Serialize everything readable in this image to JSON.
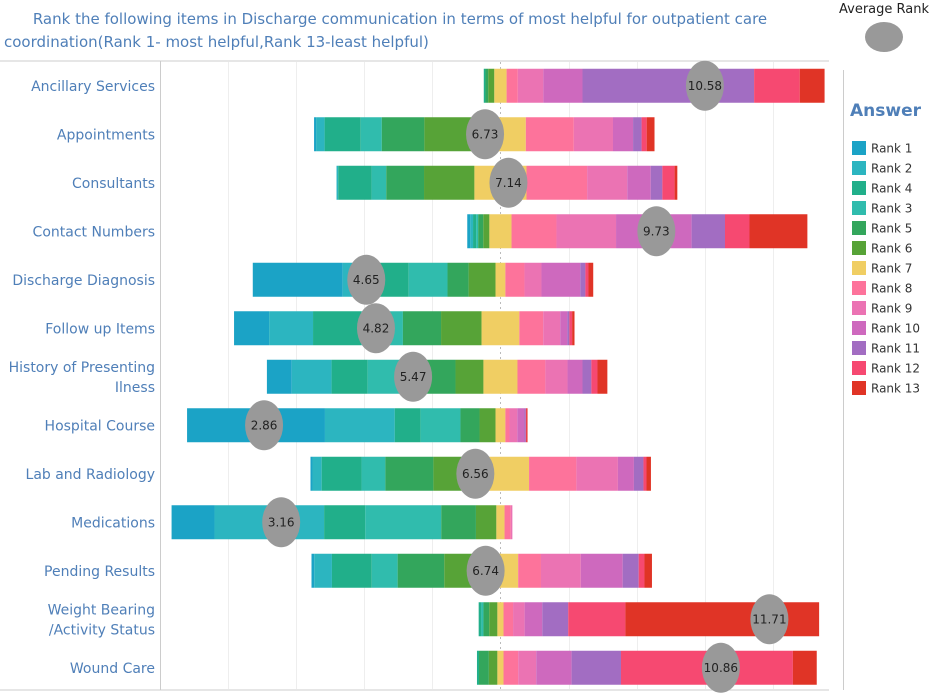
{
  "chart_data": {
    "type": "bar",
    "subtype": "diverging-stacked-bar-with-average-dots",
    "title_line1": "Rank the following items in Discharge communication in terms of most helpful for outpatient care",
    "title_line2": "coordination(Rank 1- most  helpful,Rank 13-least helpful)",
    "unit": "percent of responses",
    "xlim": [
      -100,
      96.5
    ],
    "grid": true,
    "center_reference": "middle of Rank 7",
    "legend": {
      "title": "Answer",
      "placement": "right",
      "items": [
        {
          "label": "Rank 1",
          "color": "#1ba3c6"
        },
        {
          "label": "Rank 2",
          "color": "#2cb5c0"
        },
        {
          "label": "Rank 4",
          "color": "#21af8a"
        },
        {
          "label": "Rank 3",
          "color": "#30bcad"
        },
        {
          "label": "Rank 5",
          "color": "#33a65c"
        },
        {
          "label": "Rank 6",
          "color": "#57a337"
        },
        {
          "label": "Rank 7",
          "color": "#f0ce63"
        },
        {
          "label": "Rank 8",
          "color": "#fd739b"
        },
        {
          "label": "Rank 9",
          "color": "#eb73b3"
        },
        {
          "label": "Rank 10",
          "color": "#ce69be"
        },
        {
          "label": "Rank 11",
          "color": "#a26dc2"
        },
        {
          "label": "Rank 12",
          "color": "#f64971"
        },
        {
          "label": "Rank 13",
          "color": "#e03426"
        }
      ]
    },
    "avg_legend": {
      "title": "Average Rank",
      "color": "#999999"
    },
    "categories": [
      {
        "label": [
          "Ancillary Services"
        ],
        "avg": 10.58,
        "values": [
          0,
          0,
          0.5,
          0,
          0.8,
          1.8,
          3.6,
          3.3,
          7.5,
          11.5,
          50.4,
          13.4,
          7.3
        ]
      },
      {
        "label": [
          "Appointments"
        ],
        "avg": 6.73,
        "values": [
          0.6,
          2.5,
          10.6,
          6.2,
          12.5,
          14.9,
          14.9,
          14.1,
          11.5,
          5.9,
          2.5,
          1.5,
          2.3
        ]
      },
      {
        "label": [
          "Consultants"
        ],
        "avg": 7.14,
        "values": [
          0,
          0.5,
          9.8,
          4.3,
          11.1,
          14.8,
          15.3,
          17.8,
          11.8,
          6.9,
          3.4,
          3.6,
          0.8
        ]
      },
      {
        "label": [
          "Contact Numbers"
        ],
        "avg": 9.73,
        "values": [
          0.9,
          0.8,
          0.9,
          0.6,
          1.5,
          1.8,
          6.5,
          13.2,
          17.5,
          22.2,
          9.8,
          7.2,
          17.0
        ]
      },
      {
        "label": [
          "Discharge Diagnosis"
        ],
        "avg": 4.65,
        "values": [
          26.4,
          9.9,
          9.5,
          11.4,
          6.2,
          7.9,
          2.9,
          5.6,
          5.0,
          11.4,
          1.5,
          0.9,
          1.4
        ]
      },
      {
        "label": [
          "Follow up Items"
        ],
        "avg": 4.82,
        "values": [
          10.3,
          12.9,
          14.1,
          12.3,
          11.2,
          11.9,
          11.1,
          7.0,
          5.0,
          2.1,
          0.6,
          0.8,
          0.7
        ]
      },
      {
        "label": [
          "History of Presenting",
          "Ilness"
        ],
        "avg": 5.47,
        "values": [
          7.3,
          11.7,
          10.6,
          14.3,
          11.5,
          8.2,
          10.0,
          8.2,
          6.5,
          4.4,
          2.6,
          1.8,
          2.9
        ]
      },
      {
        "label": [
          "Hospital Course"
        ],
        "avg": 2.86,
        "values": [
          40.5,
          20.5,
          7.6,
          11.7,
          5.6,
          4.7,
          2.9,
          1.2,
          2.3,
          2.1,
          0.4,
          0.2,
          0.3
        ]
      },
      {
        "label": [
          "Lab and Radiology"
        ],
        "avg": 6.56,
        "values": [
          0.6,
          2.7,
          11.7,
          7.0,
          14.1,
          11.3,
          16.8,
          13.9,
          12.2,
          4.7,
          2.8,
          0.9,
          1.3
        ]
      },
      {
        "label": [
          "Medications"
        ],
        "avg": 3.16,
        "values": [
          12.6,
          32.2,
          12.1,
          22.3,
          10.2,
          6.0,
          2.4,
          1.8,
          0.5,
          0,
          0,
          0,
          0
        ]
      },
      {
        "label": [
          "Pending Results"
        ],
        "avg": 6.74,
        "values": [
          0.8,
          5.2,
          11.7,
          7.6,
          13.7,
          11.3,
          10.4,
          6.7,
          11.7,
          12.3,
          4.7,
          1.7,
          2.2
        ]
      },
      {
        "label": [
          "Weight Bearing",
          "/Activity Status"
        ],
        "avg": 11.71,
        "values": [
          0,
          0,
          0.8,
          0.6,
          1.7,
          2.4,
          1.8,
          2.8,
          3.4,
          5.2,
          7.6,
          16.8,
          56.9
        ]
      },
      {
        "label": [
          "Wound Care"
        ],
        "avg": 10.86,
        "values": [
          0,
          0,
          0.6,
          0,
          2.9,
          2.5,
          1.8,
          4.3,
          5.3,
          10.4,
          14.5,
          50.5,
          7.0
        ]
      }
    ]
  }
}
